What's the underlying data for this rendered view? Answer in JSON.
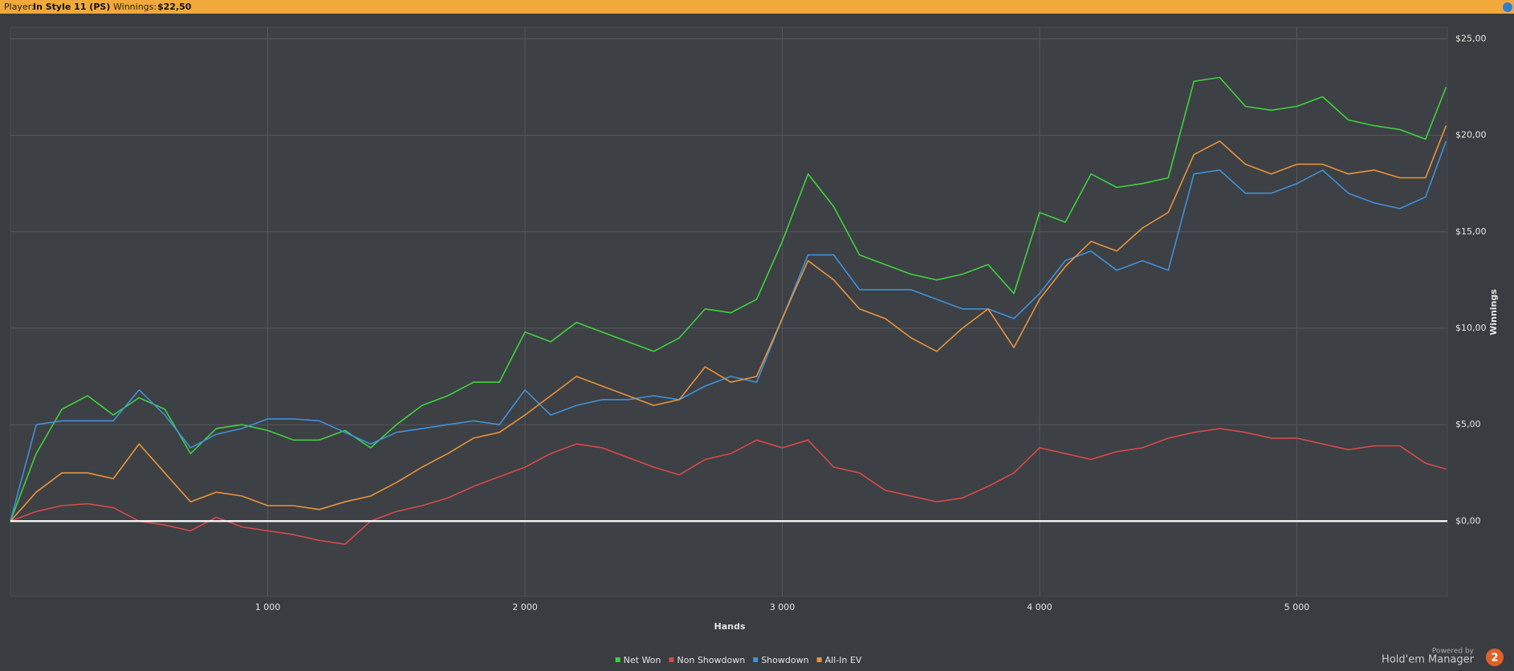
{
  "header": {
    "player_label": "Player:",
    "player": "In Style 11 (PS)",
    "winnings_label": "Winnings:",
    "winnings": "$22,50"
  },
  "chart_data": {
    "type": "line",
    "xlabel": "Hands",
    "ylabel": "Winnings",
    "x": [
      0,
      100,
      200,
      300,
      400,
      500,
      600,
      700,
      800,
      900,
      1000,
      1100,
      1200,
      1300,
      1400,
      1500,
      1600,
      1700,
      1800,
      1900,
      2000,
      2100,
      2200,
      2300,
      2400,
      2500,
      2600,
      2700,
      2800,
      2900,
      3000,
      3100,
      3200,
      3300,
      3400,
      3500,
      3600,
      3700,
      3800,
      3900,
      4000,
      4100,
      4200,
      4300,
      4400,
      4500,
      4600,
      4700,
      4800,
      4900,
      5000,
      5100,
      5200,
      5300,
      5400,
      5500,
      5580
    ],
    "series": [
      {
        "name": "Net Won",
        "color": "#3fd23f",
        "values": [
          0,
          3.5,
          5.8,
          6.5,
          5.5,
          6.4,
          5.8,
          3.5,
          4.8,
          5.0,
          4.7,
          4.2,
          4.2,
          4.7,
          3.8,
          5.0,
          6.0,
          6.5,
          7.2,
          7.2,
          9.8,
          9.3,
          10.3,
          9.8,
          9.3,
          8.8,
          9.5,
          11,
          10.8,
          11.5,
          14.5,
          18,
          16.3,
          13.8,
          13.3,
          12.8,
          12.5,
          12.8,
          13.3,
          11.8,
          16,
          15.5,
          18,
          17.3,
          17.5,
          17.8,
          22.8,
          23,
          21.5,
          21.3,
          21.5,
          22,
          20.8,
          20.5,
          20.3,
          19.8,
          22.5
        ]
      },
      {
        "name": "Non Showdown",
        "color": "#d94a4a",
        "values": [
          0,
          0.5,
          0.8,
          0.9,
          0.7,
          0,
          -0.2,
          -0.5,
          0.2,
          -0.3,
          -0.5,
          -0.7,
          -1,
          -1.2,
          0,
          0.5,
          0.8,
          1.2,
          1.8,
          2.3,
          2.8,
          3.5,
          4,
          3.8,
          3.3,
          2.8,
          2.4,
          3.2,
          3.5,
          4.2,
          3.8,
          4.2,
          2.8,
          2.5,
          1.6,
          1.3,
          1.0,
          1.2,
          1.8,
          2.5,
          3.8,
          3.5,
          3.2,
          3.6,
          3.8,
          4.3,
          4.6,
          4.8,
          4.6,
          4.3,
          4.3,
          4.0,
          3.7,
          3.9,
          3.9,
          3.0,
          2.7
        ]
      },
      {
        "name": "Showdown",
        "color": "#4191db",
        "values": [
          0,
          5.0,
          5.2,
          5.2,
          5.2,
          6.8,
          5.5,
          3.8,
          4.5,
          4.8,
          5.3,
          5.3,
          5.2,
          4.6,
          4.0,
          4.6,
          4.8,
          5.0,
          5.2,
          5.0,
          6.8,
          5.5,
          6.0,
          6.3,
          6.3,
          6.5,
          6.3,
          7.0,
          7.5,
          7.2,
          10.5,
          13.8,
          13.8,
          12.0,
          12.0,
          12.0,
          11.5,
          11.0,
          11.0,
          10.5,
          11.8,
          13.5,
          14.0,
          13.0,
          13.5,
          13.0,
          18,
          18.2,
          17,
          17,
          17.5,
          18.2,
          17.0,
          16.5,
          16.2,
          16.8,
          19.7
        ]
      },
      {
        "name": "All-In EV",
        "color": "#e9943c",
        "values": [
          0,
          1.5,
          2.5,
          2.5,
          2.2,
          4.0,
          2.5,
          1.0,
          1.5,
          1.3,
          0.8,
          0.8,
          0.6,
          1.0,
          1.3,
          2.0,
          2.8,
          3.5,
          4.3,
          4.6,
          5.5,
          6.5,
          7.5,
          7.0,
          6.5,
          6.0,
          6.3,
          8.0,
          7.2,
          7.5,
          10.5,
          13.5,
          12.5,
          11.0,
          10.5,
          9.5,
          8.8,
          10.0,
          11.0,
          9.0,
          11.5,
          13.2,
          14.5,
          14.0,
          15.2,
          16,
          19,
          19.7,
          18.5,
          18,
          18.5,
          18.5,
          18.0,
          18.2,
          17.8,
          17.8,
          20.5
        ]
      }
    ],
    "xlim": [
      0,
      5585
    ],
    "ylim": [
      -3.9,
      25.6
    ],
    "xticks": [
      {
        "value": 1000,
        "label": "1 000"
      },
      {
        "value": 2000,
        "label": "2 000"
      },
      {
        "value": 3000,
        "label": "3 000"
      },
      {
        "value": 4000,
        "label": "4 000"
      },
      {
        "value": 5000,
        "label": "5 000"
      }
    ],
    "yticks": [
      {
        "value": 0,
        "label": "$0,00"
      },
      {
        "value": 5,
        "label": "$5,00"
      },
      {
        "value": 10,
        "label": "$10,00"
      },
      {
        "value": 15,
        "label": "$15,00"
      },
      {
        "value": 20,
        "label": "$20,00"
      },
      {
        "value": 25,
        "label": "$25,00"
      }
    ],
    "grid": true,
    "legend": "bottom"
  },
  "branding": {
    "powered": "Powered by",
    "product": "Hold'em Manager",
    "version": "2"
  }
}
